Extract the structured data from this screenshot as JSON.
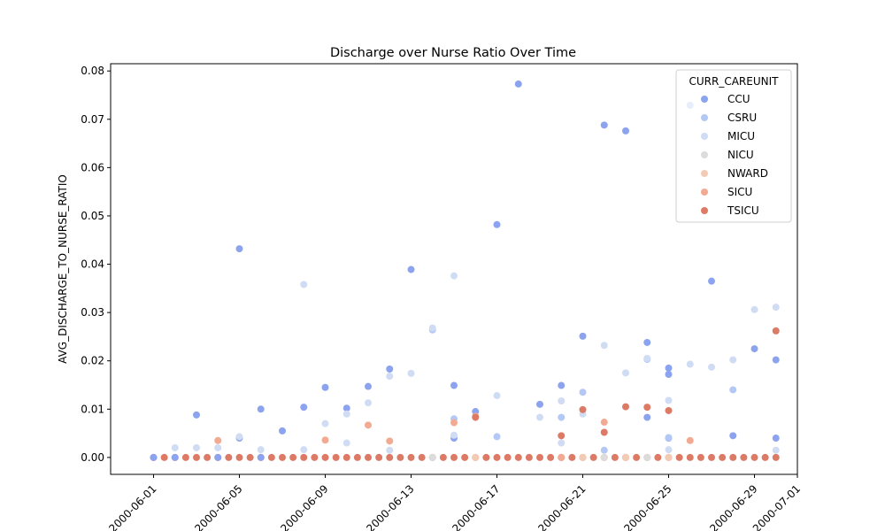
{
  "chart_data": {
    "type": "scatter",
    "title": "Discharge over Nurse Ratio Over Time",
    "xlabel": "",
    "ylabel": "AVG_DISCHARGE_TO_NURSE_RATIO",
    "x_type": "date",
    "xlim": [
      "2000-05-30",
      "2000-07-01"
    ],
    "ylim": [
      -0.0035,
      0.0815
    ],
    "x_ticks": [
      "2000-06-01",
      "2000-06-05",
      "2000-06-09",
      "2000-06-13",
      "2000-06-17",
      "2000-06-21",
      "2000-06-25",
      "2000-06-29",
      "2000-07-01"
    ],
    "y_ticks": [
      0.0,
      0.01,
      0.02,
      0.03,
      0.04,
      0.05,
      0.06,
      0.07,
      0.08
    ],
    "y_tick_labels": [
      "0.00",
      "0.01",
      "0.02",
      "0.03",
      "0.04",
      "0.05",
      "0.06",
      "0.07",
      "0.08"
    ],
    "grid": false,
    "legend": {
      "title": "CURR_CAREUNIT",
      "placement": "top-right"
    },
    "series": [
      {
        "name": "CCU",
        "color": "#8ca3ef",
        "points": [
          [
            "2000-06-01",
            0
          ],
          [
            "2000-06-02",
            0
          ],
          [
            "2000-06-03",
            0.0088
          ],
          [
            "2000-06-04",
            0
          ],
          [
            "2000-06-05",
            0.004
          ],
          [
            "2000-06-06",
            0
          ],
          [
            "2000-06-05",
            0.0432
          ],
          [
            "2000-06-06",
            0.01
          ],
          [
            "2000-06-07",
            0.0055
          ],
          [
            "2000-06-08",
            0.0104
          ],
          [
            "2000-06-09",
            0.0145
          ],
          [
            "2000-06-10",
            0.0102
          ],
          [
            "2000-06-11",
            0.0147
          ],
          [
            "2000-06-12",
            0.0183
          ],
          [
            "2000-06-13",
            0.0389
          ],
          [
            "2000-06-15",
            0.0149
          ],
          [
            "2000-06-16",
            0.0095
          ],
          [
            "2000-06-15",
            0.004
          ],
          [
            "2000-06-17",
            0.0482
          ],
          [
            "2000-06-18",
            0.0773
          ],
          [
            "2000-06-19",
            0.011
          ],
          [
            "2000-06-20",
            0.0149
          ],
          [
            "2000-06-21",
            0.0251
          ],
          [
            "2000-06-22",
            0.0688
          ],
          [
            "2000-06-23",
            0.0676
          ],
          [
            "2000-06-24",
            0.0238
          ],
          [
            "2000-06-24",
            0.0083
          ],
          [
            "2000-06-25",
            0.0185
          ],
          [
            "2000-06-25",
            0.0172
          ],
          [
            "2000-06-25",
            0.004
          ],
          [
            "2000-06-26",
            0.0729
          ],
          [
            "2000-06-27",
            0.0365
          ],
          [
            "2000-06-28",
            0.0045
          ],
          [
            "2000-06-29",
            0.0225
          ],
          [
            "2000-06-30",
            0.0202
          ],
          [
            "2000-06-30",
            0.004
          ]
        ]
      },
      {
        "name": "CSRU",
        "color": "#b4c8f5",
        "points": [
          [
            "2000-06-14",
            0.0264
          ],
          [
            "2000-06-15",
            0.008
          ],
          [
            "2000-06-17",
            0.0043
          ],
          [
            "2000-06-20",
            0.0083
          ],
          [
            "2000-06-21",
            0.0135
          ],
          [
            "2000-06-22",
            0.0015
          ],
          [
            "2000-06-24",
            0.0203
          ],
          [
            "2000-06-25",
            0.0041
          ],
          [
            "2000-06-28",
            0.014
          ]
        ]
      },
      {
        "name": "MICU",
        "color": "#cfdcf4",
        "points": [
          [
            "2000-06-02",
            0.002
          ],
          [
            "2000-06-03",
            0.002
          ],
          [
            "2000-06-04",
            0.002
          ],
          [
            "2000-06-05",
            0.0043
          ],
          [
            "2000-06-06",
            0.0016
          ],
          [
            "2000-06-08",
            0.0016
          ],
          [
            "2000-06-08",
            0.0358
          ],
          [
            "2000-06-09",
            0.007
          ],
          [
            "2000-06-10",
            0.009
          ],
          [
            "2000-06-10",
            0.003
          ],
          [
            "2000-06-11",
            0.0113
          ],
          [
            "2000-06-12",
            0.0168
          ],
          [
            "2000-06-12",
            0.0015
          ],
          [
            "2000-06-13",
            0.0174
          ],
          [
            "2000-06-14",
            0.0268
          ],
          [
            "2000-06-15",
            0.0376
          ],
          [
            "2000-06-15",
            0.0046
          ],
          [
            "2000-06-17",
            0.0128
          ],
          [
            "2000-06-19",
            0.0083
          ],
          [
            "2000-06-20",
            0.003
          ],
          [
            "2000-06-20",
            0.0117
          ],
          [
            "2000-06-21",
            0.009
          ],
          [
            "2000-06-22",
            0.0232
          ],
          [
            "2000-06-23",
            0.0175
          ],
          [
            "2000-06-24",
            0.0205
          ],
          [
            "2000-06-25",
            0.0118
          ],
          [
            "2000-06-25",
            0.0016
          ],
          [
            "2000-06-26",
            0.0193
          ],
          [
            "2000-06-27",
            0.0187
          ],
          [
            "2000-06-28",
            0.0202
          ],
          [
            "2000-06-29",
            0.0306
          ],
          [
            "2000-06-30",
            0.0311
          ],
          [
            "2000-06-30",
            0.0015
          ]
        ]
      },
      {
        "name": "NICU",
        "color": "#dddcdc",
        "points": [
          [
            "2000-06-14",
            0
          ],
          [
            "2000-06-22",
            0
          ],
          [
            "2000-06-24",
            0
          ]
        ]
      },
      {
        "name": "NWARD",
        "color": "#f3cbb5",
        "points": [
          [
            "2000-06-16",
            0
          ],
          [
            "2000-06-21",
            0
          ],
          [
            "2000-06-23",
            0
          ],
          [
            "2000-06-25",
            0
          ]
        ]
      },
      {
        "name": "SICU",
        "color": "#f2ab92",
        "points": [
          [
            "2000-06-04",
            0.0035
          ],
          [
            "2000-06-09",
            0.0036
          ],
          [
            "2000-06-11",
            0.0067
          ],
          [
            "2000-06-12",
            0.0034
          ],
          [
            "2000-06-15",
            0.0072
          ],
          [
            "2000-06-16",
            0.0085
          ],
          [
            "2000-06-20",
            0
          ],
          [
            "2000-06-22",
            0.0073
          ],
          [
            "2000-06-26",
            0.0035
          ]
        ]
      },
      {
        "name": "TSICU",
        "color": "#dd7a66",
        "points": [
          [
            "2000-06-16",
            0.0083
          ],
          [
            "2000-06-20",
            0.0045
          ],
          [
            "2000-06-21",
            0.0099
          ],
          [
            "2000-06-22",
            0.0052
          ],
          [
            "2000-06-23",
            0.0105
          ],
          [
            "2000-06-24",
            0.0104
          ],
          [
            "2000-06-25",
            0.0097
          ],
          [
            "2000-06-30",
            0.0262
          ]
        ]
      }
    ],
    "baseline": {
      "y": 0,
      "color": "#dd7a66",
      "start": "2000-06-01",
      "end": "2000-06-30",
      "step_days": 0.5
    }
  }
}
